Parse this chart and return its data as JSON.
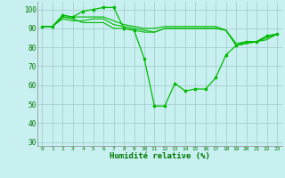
{
  "xlabel": "Humidité relative (%)",
  "background_color": "#c8f0f0",
  "grid_color": "#a0c8c8",
  "line_color": "#00bb00",
  "xlim": [
    -0.5,
    23.5
  ],
  "ylim": [
    28,
    104
  ],
  "yticks": [
    30,
    40,
    50,
    60,
    70,
    80,
    90,
    100
  ],
  "xticks": [
    0,
    1,
    2,
    3,
    4,
    5,
    6,
    7,
    8,
    9,
    10,
    11,
    12,
    13,
    14,
    15,
    16,
    17,
    18,
    19,
    20,
    21,
    22,
    23
  ],
  "series_no_marker": [
    [
      91,
      91,
      96,
      95,
      93,
      93,
      93,
      90,
      90,
      89,
      88,
      88,
      90,
      90,
      90,
      90,
      90,
      90,
      89,
      81,
      82,
      83,
      84,
      87
    ],
    [
      91,
      91,
      95,
      94,
      94,
      95,
      95,
      92,
      91,
      90,
      89,
      88,
      90,
      90,
      90,
      90,
      90,
      90,
      89,
      81,
      82,
      83,
      85,
      87
    ],
    [
      91,
      91,
      96,
      96,
      96,
      96,
      96,
      94,
      92,
      91,
      90,
      90,
      91,
      91,
      91,
      91,
      91,
      91,
      89,
      82,
      83,
      83,
      86,
      87
    ]
  ],
  "series_marker": [
    [
      91,
      91,
      97,
      96,
      99,
      100,
      101,
      101,
      90,
      89,
      74,
      49,
      49,
      61,
      57,
      58,
      58,
      64,
      76,
      81,
      83,
      83,
      86,
      87
    ]
  ]
}
